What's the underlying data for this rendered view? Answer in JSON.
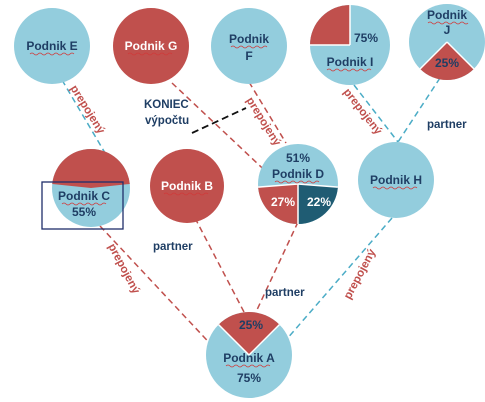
{
  "colors": {
    "blue": "#93cddd",
    "red": "#c0504d",
    "dark_teal": "#1f5c73",
    "navy_text": "#1f3e64",
    "edge_red": "#c0504d",
    "edge_blue": "#4bacc6"
  },
  "nodes": {
    "e": {
      "label": "Podnik E"
    },
    "g": {
      "label": "Podnik G"
    },
    "f": {
      "label_line1": "Podnik",
      "label_line2": "F"
    },
    "i": {
      "label": "Podnik I",
      "pct": "75%"
    },
    "j": {
      "label_line1": "Podnik",
      "label_line2": "J",
      "pct": "25%"
    },
    "c": {
      "label": "Podnik C",
      "pct": "55%"
    },
    "b": {
      "label": "Podnik B"
    },
    "d": {
      "label": "Podnik D",
      "pct_top": "51%",
      "pct_red": "27%",
      "pct_dark": "22%"
    },
    "h": {
      "label": "Podnik H"
    },
    "a": {
      "label": "Podnik A",
      "pct_top": "25%",
      "pct_bottom": "75%"
    }
  },
  "edge_labels": {
    "e_c": "prepojený",
    "f_d": "prepojený",
    "i_h": "prepojený",
    "j_h": "partner",
    "c_a": "prepojený",
    "b_a": "partner",
    "d_a": "partner",
    "h_a": "prepojený"
  },
  "annotation": {
    "line1": "KONIEC",
    "line2": "výpočtu"
  }
}
